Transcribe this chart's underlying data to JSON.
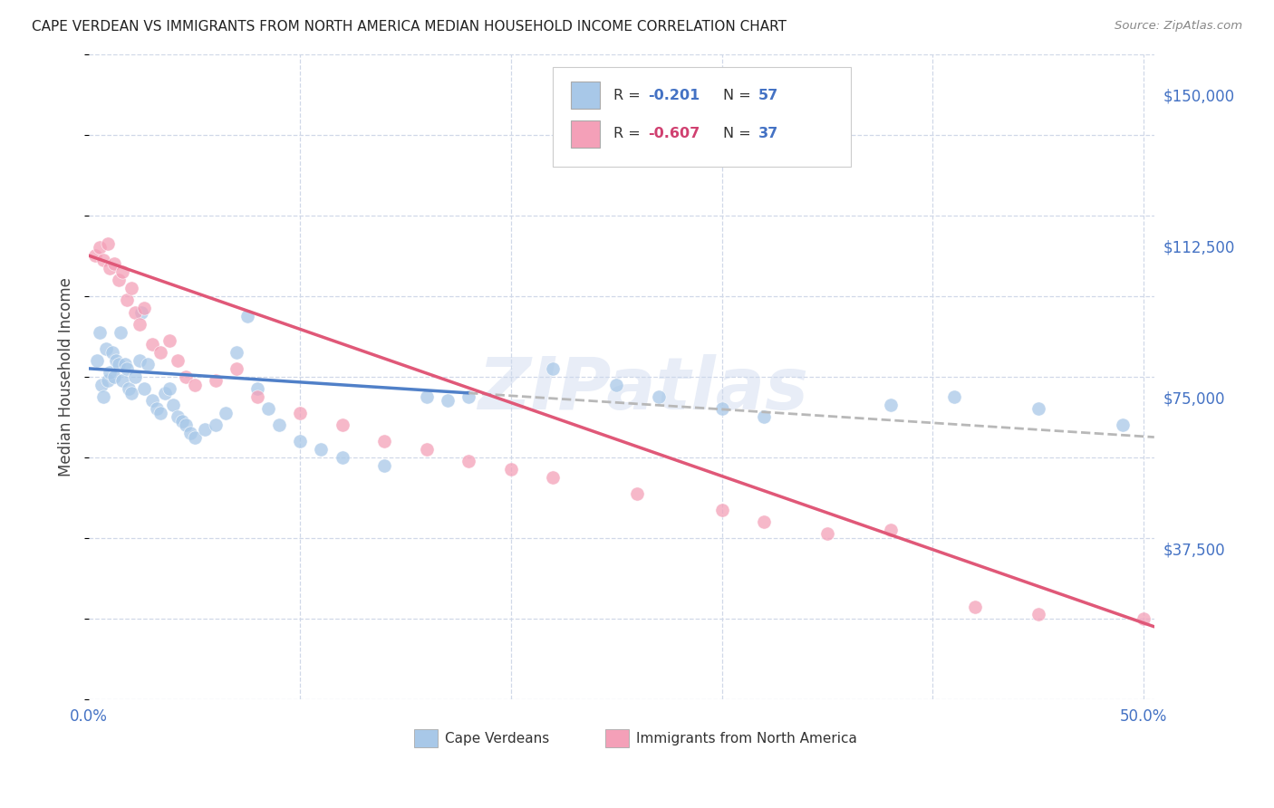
{
  "title": "CAPE VERDEAN VS IMMIGRANTS FROM NORTH AMERICA MEDIAN HOUSEHOLD INCOME CORRELATION CHART",
  "source": "Source: ZipAtlas.com",
  "ylabel": "Median Household Income",
  "ytick_vals": [
    37500,
    75000,
    112500,
    150000
  ],
  "ytick_labels": [
    "$37,500",
    "$75,000",
    "$112,500",
    "$150,000"
  ],
  "xlim": [
    0.0,
    0.505
  ],
  "ylim": [
    0,
    160000
  ],
  "watermark": "ZIPatlas",
  "legend_r1": "-0.201",
  "legend_n1": "57",
  "legend_r2": "-0.607",
  "legend_n2": "37",
  "color_blue": "#a8c8e8",
  "color_pink": "#f4a0b8",
  "color_blue_line": "#5080c8",
  "color_pink_line": "#e05878",
  "color_dashed": "#b8b8b8",
  "color_blue_text": "#4472c4",
  "color_pink_text": "#d04070",
  "color_grid": "#d0d8e8",
  "blue_x": [
    0.004,
    0.005,
    0.006,
    0.007,
    0.008,
    0.009,
    0.01,
    0.011,
    0.012,
    0.013,
    0.014,
    0.015,
    0.016,
    0.017,
    0.018,
    0.019,
    0.02,
    0.022,
    0.024,
    0.025,
    0.026,
    0.028,
    0.03,
    0.032,
    0.034,
    0.036,
    0.038,
    0.04,
    0.042,
    0.044,
    0.046,
    0.048,
    0.05,
    0.055,
    0.06,
    0.065,
    0.07,
    0.075,
    0.08,
    0.085,
    0.09,
    0.1,
    0.11,
    0.12,
    0.14,
    0.16,
    0.17,
    0.18,
    0.22,
    0.25,
    0.27,
    0.3,
    0.32,
    0.38,
    0.41,
    0.45,
    0.49
  ],
  "blue_y": [
    84000,
    91000,
    78000,
    75000,
    87000,
    79000,
    81000,
    86000,
    80000,
    84000,
    83000,
    91000,
    79000,
    83000,
    82000,
    77000,
    76000,
    80000,
    84000,
    96000,
    77000,
    83000,
    74000,
    72000,
    71000,
    76000,
    77000,
    73000,
    70000,
    69000,
    68000,
    66000,
    65000,
    67000,
    68000,
    71000,
    86000,
    95000,
    77000,
    72000,
    68000,
    64000,
    62000,
    60000,
    58000,
    75000,
    74000,
    75000,
    82000,
    78000,
    75000,
    72000,
    70000,
    73000,
    75000,
    72000,
    68000
  ],
  "pink_x": [
    0.003,
    0.005,
    0.007,
    0.009,
    0.01,
    0.012,
    0.014,
    0.016,
    0.018,
    0.02,
    0.022,
    0.024,
    0.026,
    0.03,
    0.034,
    0.038,
    0.042,
    0.046,
    0.05,
    0.06,
    0.07,
    0.08,
    0.1,
    0.12,
    0.14,
    0.16,
    0.18,
    0.2,
    0.22,
    0.26,
    0.3,
    0.32,
    0.35,
    0.38,
    0.42,
    0.45,
    0.5
  ],
  "pink_y": [
    110000,
    112000,
    109000,
    113000,
    107000,
    108000,
    104000,
    106000,
    99000,
    102000,
    96000,
    93000,
    97000,
    88000,
    86000,
    89000,
    84000,
    80000,
    78000,
    79000,
    82000,
    75000,
    71000,
    68000,
    64000,
    62000,
    59000,
    57000,
    55000,
    51000,
    47000,
    44000,
    41000,
    42000,
    23000,
    21000,
    20000
  ],
  "blue_trendline_x0": 0.0,
  "blue_trendline_x_solid_end": 0.18,
  "blue_trendline_x1": 0.505,
  "blue_trendline_y0": 82000,
  "blue_trendline_y1": 65000,
  "pink_trendline_x0": 0.0,
  "pink_trendline_x1": 0.505,
  "pink_trendline_y0": 110000,
  "pink_trendline_y1": 18000
}
